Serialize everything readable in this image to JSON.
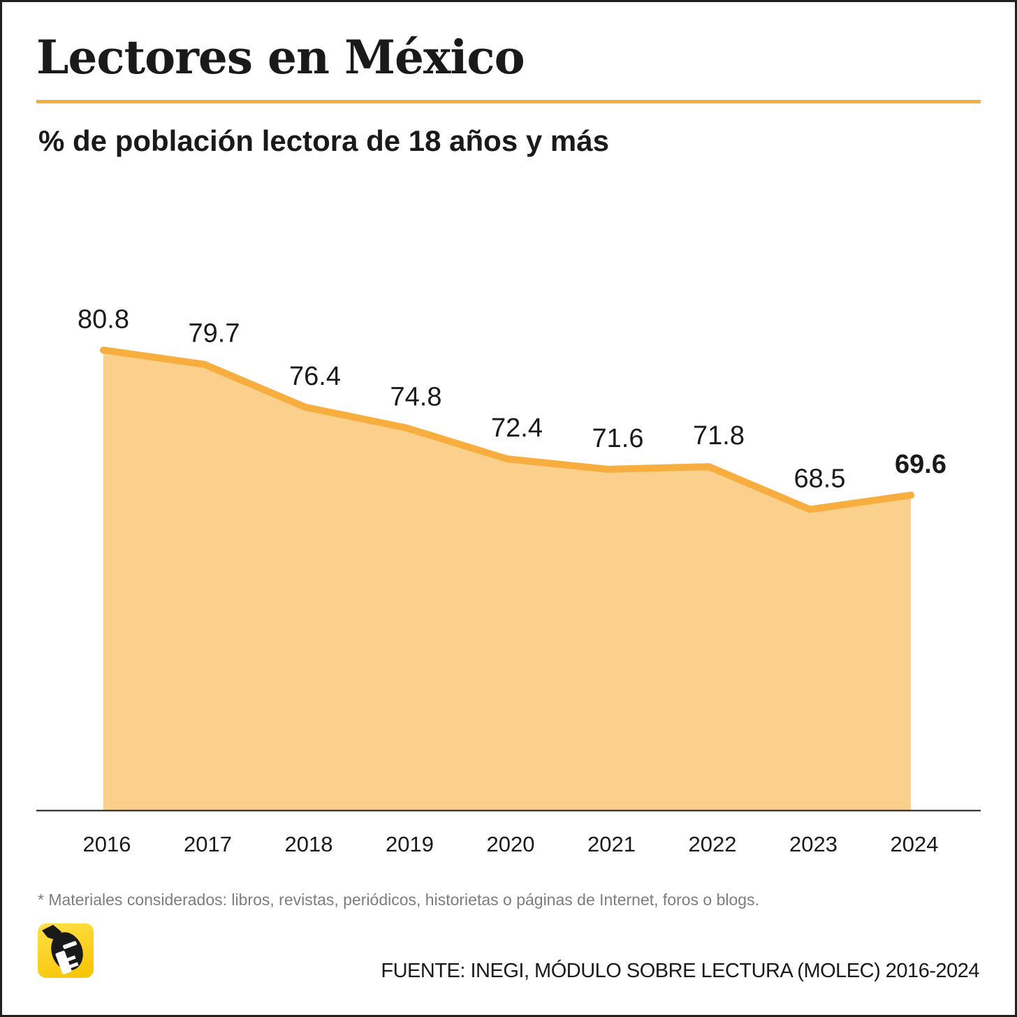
{
  "title": "Lectores en México",
  "footnote": "* Materiales considerados: libros, revistas, periódicos, historietas o páginas de Internet, foros o blogs.",
  "source": "FUENTE: INEGI, MÓDULO SOBRE LECTURA (MOLEC) 2016-2024",
  "logo_icon": "reader-mascot-icon",
  "colors": {
    "line": "#f7ae3e",
    "area": "#fbd08c",
    "text": "#1a1a1a",
    "baseline": "#1a1a1a"
  },
  "chart_data": {
    "type": "area",
    "title": "% de población lectora de 18 años y más",
    "xlabel": "",
    "ylabel": "",
    "categories": [
      "2016",
      "2017",
      "2018",
      "2019",
      "2020",
      "2021",
      "2022",
      "2023",
      "2024"
    ],
    "values": [
      80.8,
      79.7,
      76.4,
      74.8,
      72.4,
      71.6,
      71.8,
      68.5,
      69.6
    ],
    "labels": [
      "80.8",
      "79.7",
      "76.4",
      "74.8",
      "72.4",
      "71.6",
      "71.8",
      "68.5",
      "69.6"
    ],
    "highlight_index": 8,
    "ylim": [
      47.0,
      82.0
    ],
    "grid": false,
    "legend": "none"
  }
}
